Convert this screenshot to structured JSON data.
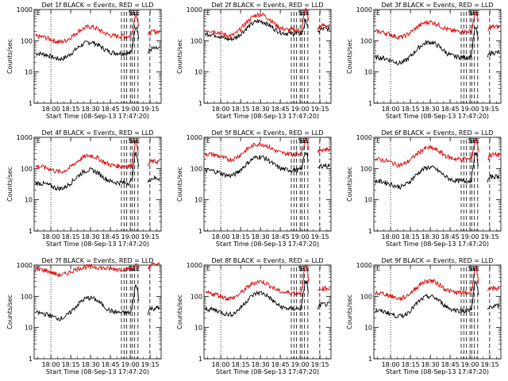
{
  "colors": {
    "events": "#000000",
    "lld": "#dd0000",
    "axes": "#000000"
  },
  "common": {
    "xlabel": "Start Time (08-Sep-13 17:47:20)",
    "ylabel": "Counts/sec",
    "x_tick_labels": [
      "18:00",
      "18:15",
      "18:30",
      "18:45",
      "19:00",
      "19:15"
    ],
    "x_tick_minutes": [
      12.67,
      27.67,
      42.67,
      57.67,
      72.67,
      87.67
    ],
    "y_tick_labels": [
      "1",
      "10",
      "100",
      "1000"
    ],
    "y_tick_values": [
      1,
      10,
      100,
      1000
    ],
    "ylim": [
      1,
      1000
    ],
    "xlim_minutes": [
      0,
      96
    ],
    "yscale": "log",
    "dotted_line_minute": 12.67,
    "dashed_line_minutes": [
      66,
      68,
      70,
      72.7,
      74,
      76,
      78.5,
      87.5
    ]
  },
  "marker_labels": [
    "S",
    "S",
    "E",
    "E",
    "S",
    "E"
  ],
  "chart_data": [
    {
      "type": "line",
      "title": "Det 1f BLACK = Events, RED = LLD",
      "series": [
        {
          "name": "Events",
          "base": 40,
          "peak": 90,
          "flare": 300
        },
        {
          "name": "LLD",
          "base": 140,
          "peak": 280,
          "flare": 700
        }
      ]
    },
    {
      "type": "line",
      "title": "Det 2f BLACK = Events, RED = LLD",
      "series": [
        {
          "name": "Events",
          "base": 170,
          "peak": 420,
          "flare": 420
        },
        {
          "name": "LLD",
          "base": 220,
          "peak": 700,
          "flare": 1000
        }
      ]
    },
    {
      "type": "line",
      "title": "Det 3f BLACK = Events, RED = LLD",
      "series": [
        {
          "name": "Events",
          "base": 30,
          "peak": 90,
          "flare": 250
        },
        {
          "name": "LLD",
          "base": 200,
          "peak": 400,
          "flare": 800
        }
      ]
    },
    {
      "type": "line",
      "title": "Det 4f BLACK = Events, RED = LLD",
      "series": [
        {
          "name": "Events",
          "base": 35,
          "peak": 90,
          "flare": 300
        },
        {
          "name": "LLD",
          "base": 120,
          "peak": 260,
          "flare": 700
        }
      ]
    },
    {
      "type": "line",
      "title": "Det 5f BLACK = Events, RED = LLD",
      "series": [
        {
          "name": "Events",
          "base": 90,
          "peak": 240,
          "flare": 350
        },
        {
          "name": "LLD",
          "base": 300,
          "peak": 620,
          "flare": 900
        }
      ]
    },
    {
      "type": "line",
      "title": "Det 6f BLACK = Events, RED = LLD",
      "series": [
        {
          "name": "Events",
          "base": 40,
          "peak": 110,
          "flare": 300
        },
        {
          "name": "LLD",
          "base": 200,
          "peak": 460,
          "flare": 850
        }
      ]
    },
    {
      "type": "line",
      "title": "Det 7f BLACK = Events, RED = LLD",
      "series": [
        {
          "name": "Events",
          "base": 30,
          "peak": 90,
          "flare": 220
        },
        {
          "name": "LLD",
          "base": 750,
          "peak": 900,
          "flare": 1000
        }
      ]
    },
    {
      "type": "line",
      "title": "Det 8f BLACK = Events, RED = LLD",
      "series": [
        {
          "name": "Events",
          "base": 40,
          "peak": 130,
          "flare": 300
        },
        {
          "name": "LLD",
          "base": 130,
          "peak": 300,
          "flare": 900
        }
      ]
    },
    {
      "type": "line",
      "title": "Det 9f BLACK = Events, RED = LLD",
      "series": [
        {
          "name": "Events",
          "base": 35,
          "peak": 100,
          "flare": 280
        },
        {
          "name": "LLD",
          "base": 130,
          "peak": 320,
          "flare": 800
        }
      ]
    }
  ]
}
